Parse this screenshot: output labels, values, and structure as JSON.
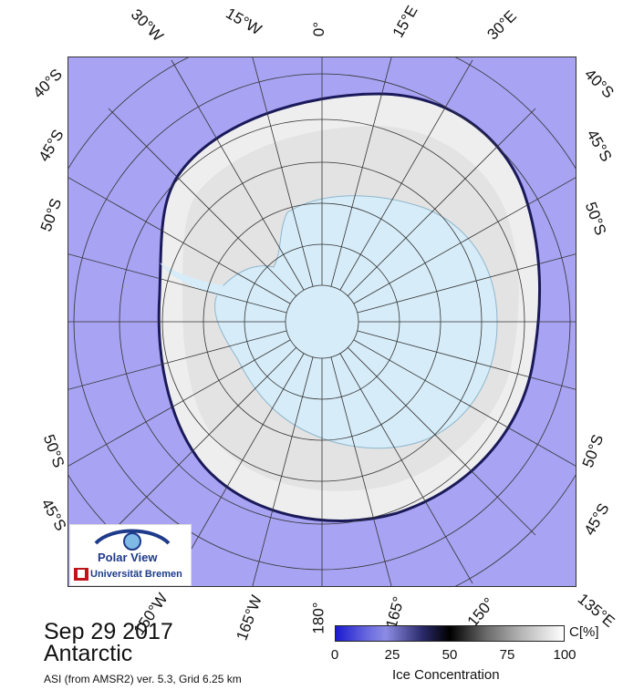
{
  "map": {
    "region": "Antarctic",
    "date": "Sep 29 2017",
    "product": "ASI (from AMSR2) ver. 5.3,  Grid 6.25 km",
    "logo": {
      "title": "Polar View",
      "subtitle": "Universität Bremen"
    },
    "lat_labels": {
      "top_left": "40°S",
      "left_upper": "45°S",
      "left_mid": "50°S",
      "top_right": "40°S",
      "right_upper": "45°S",
      "right_mid": "50°S",
      "left_lower": "50°S",
      "bottom_left": "45°S",
      "right_lower": "50°S",
      "bottom_right": "45°S"
    },
    "lon_labels": {
      "top": [
        "30°W",
        "15°W",
        "0°",
        "15°E",
        "30°E"
      ],
      "bottom": [
        "150°W",
        "165°W",
        "180°",
        "165°",
        "150°",
        "135°E"
      ]
    },
    "colors": {
      "ocean": "#a8a3f2",
      "ice": "#f2f2f2",
      "land": "#d6ecf8"
    }
  },
  "colorbar": {
    "label": "Ice Concentration",
    "unit": "C[%]",
    "ticks": [
      "0",
      "25",
      "50",
      "75",
      "100"
    ],
    "range": [
      0,
      100
    ]
  }
}
